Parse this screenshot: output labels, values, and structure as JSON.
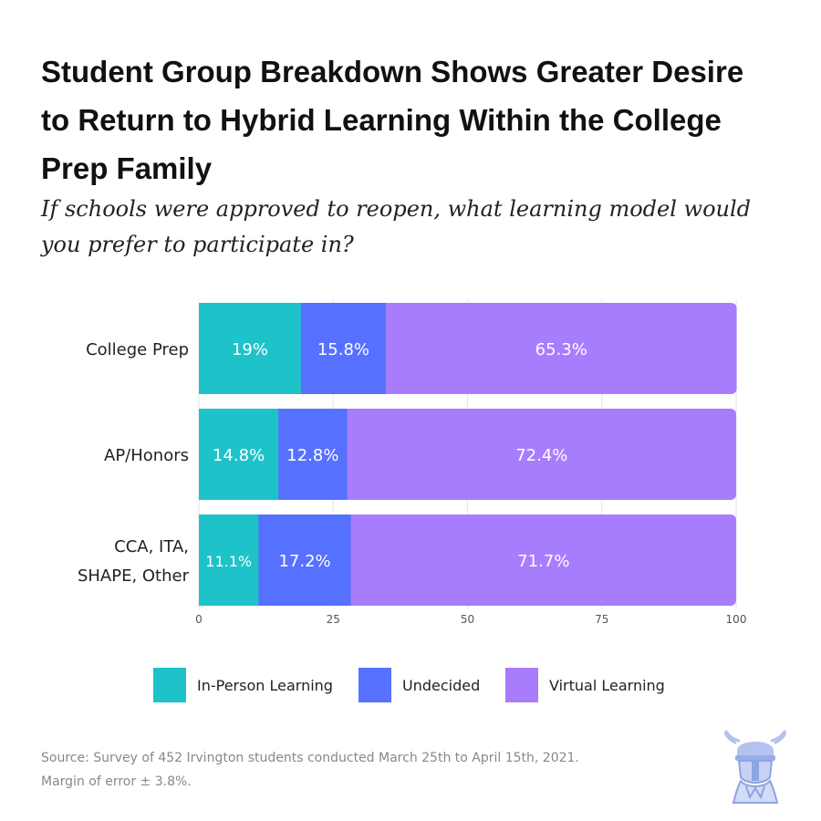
{
  "title": "Student Group Breakdown Shows Greater Desire to Return to Hybrid Learning Within the College Prep Family",
  "subtitle": "If schools were approved to reopen, what learning model would you prefer to participate in?",
  "legend": {
    "in_person": "In-Person Learning",
    "undecided": "Undecided",
    "virtual": "Virtual Learning"
  },
  "source_line1": "Source: Survey of 452 Irvington students conducted March 25th to April 15th, 2021.",
  "source_line2": "Margin of error ± 3.8%.",
  "colors": {
    "in_person": "#1ec3c9",
    "undecided": "#5671ff",
    "virtual": "#a87dfd"
  },
  "chart_data": {
    "type": "bar",
    "orientation": "horizontal",
    "stacked": true,
    "categories": [
      [
        "College Prep"
      ],
      [
        "AP/Honors"
      ],
      [
        "CCA, ITA,",
        "SHAPE, Other"
      ]
    ],
    "series": [
      {
        "name": "In-Person Learning",
        "values": [
          19,
          14.8,
          11.1
        ],
        "labels": [
          "19%",
          "14.8%",
          "11.1%"
        ]
      },
      {
        "name": "Undecided",
        "values": [
          15.8,
          12.8,
          17.2
        ],
        "labels": [
          "15.8%",
          "12.8%",
          "17.2%"
        ]
      },
      {
        "name": "Virtual Learning",
        "values": [
          65.3,
          72.4,
          71.7
        ],
        "labels": [
          "65.3%",
          "72.4%",
          "71.7%"
        ]
      }
    ],
    "xlim": [
      0,
      100
    ],
    "xticks": [
      0,
      25,
      50,
      75,
      100
    ],
    "grid": true,
    "legend_position": "bottom"
  }
}
